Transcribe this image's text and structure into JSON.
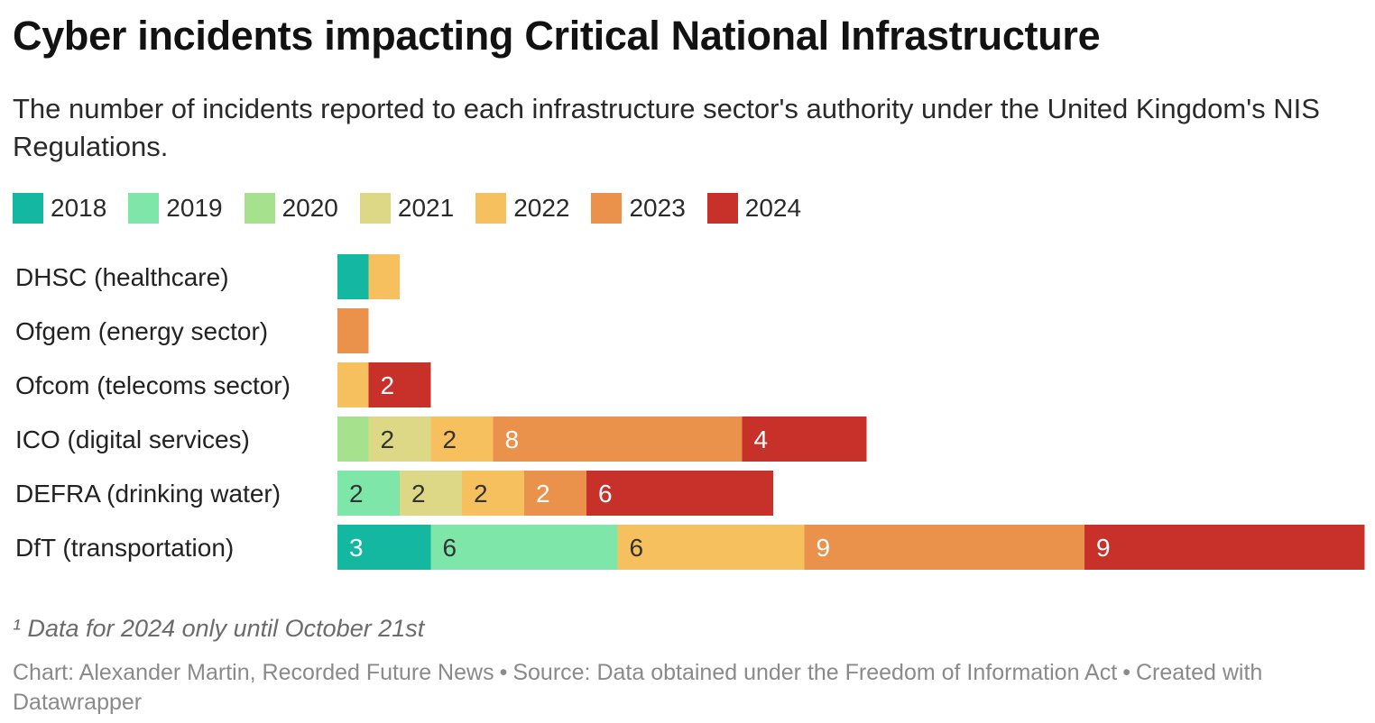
{
  "title": "Cyber incidents impacting Critical National Infrastructure",
  "subtitle": "The number of incidents reported to each infrastructure sector's authority under the United Kingdom's NIS Regulations.",
  "footnote": "¹ Data for 2024 only until October 21st",
  "credit": {
    "chart_by": "Chart: Alexander Martin, Recorded Future News",
    "source": "Source: Data obtained under the Freedom of Information Act",
    "tool": "Created with Datawrapper",
    "separator": "•"
  },
  "chart_data": {
    "type": "bar",
    "orientation": "horizontal",
    "stacked": true,
    "categories": [
      "DHSC (healthcare)",
      "Ofgem (energy sector)",
      "Ofcom (telecoms sector)",
      "ICO (digital services)",
      "DEFRA (drinking water)",
      "DfT (transportation)"
    ],
    "series": [
      {
        "name": "2018",
        "color": "#14b8a0",
        "values": [
          1,
          0,
          0,
          0,
          0,
          3
        ]
      },
      {
        "name": "2019",
        "color": "#7fe6aa",
        "values": [
          0,
          0,
          0,
          0,
          2,
          6
        ]
      },
      {
        "name": "2020",
        "color": "#a6e28e",
        "values": [
          0,
          0,
          0,
          1,
          0,
          0
        ]
      },
      {
        "name": "2021",
        "color": "#ddd886",
        "values": [
          0,
          0,
          0,
          2,
          2,
          0
        ]
      },
      {
        "name": "2022",
        "color": "#f6c05f",
        "values": [
          1,
          0,
          1,
          2,
          2,
          6
        ]
      },
      {
        "name": "2023",
        "color": "#ea924c",
        "values": [
          0,
          1,
          0,
          8,
          2,
          9
        ]
      },
      {
        "name": "2024",
        "color": "#c8312a",
        "values": [
          0,
          0,
          2,
          4,
          6,
          9
        ]
      }
    ],
    "data_labels": "shown for values of 2 or more",
    "xlim": [
      0,
      33
    ],
    "grid": false,
    "legend": "top-left"
  }
}
